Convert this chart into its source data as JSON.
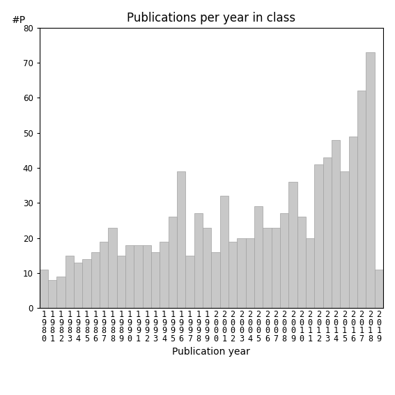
{
  "title": "Publications per year in class",
  "xlabel": "Publication year",
  "ylabel": "#P",
  "ylim": [
    0,
    80
  ],
  "yticks": [
    0,
    10,
    20,
    30,
    40,
    50,
    60,
    70,
    80
  ],
  "bar_color": "#c8c8c8",
  "bar_edgecolor": "#a0a0a0",
  "years": [
    1980,
    1981,
    1982,
    1983,
    1984,
    1985,
    1986,
    1987,
    1988,
    1989,
    1990,
    1991,
    1992,
    1993,
    1994,
    1995,
    1996,
    1997,
    1998,
    1999,
    2000,
    2001,
    2002,
    2003,
    2004,
    2005,
    2006,
    2007,
    2008,
    2009,
    2010,
    2011,
    2012,
    2013,
    2014,
    2015,
    2016,
    2017,
    2018,
    2019
  ],
  "values": [
    11,
    8,
    9,
    15,
    13,
    14,
    16,
    19,
    23,
    15,
    18,
    18,
    18,
    16,
    19,
    26,
    39,
    15,
    27,
    23,
    16,
    32,
    19,
    20,
    20,
    29,
    23,
    23,
    27,
    36,
    26,
    20,
    41,
    43,
    48,
    39,
    49,
    62,
    73,
    11
  ],
  "title_fontsize": 12,
  "axis_label_fontsize": 10,
  "tick_fontsize": 8.5
}
